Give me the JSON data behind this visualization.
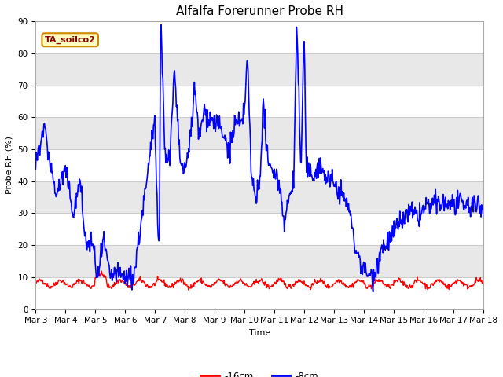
{
  "title": "Alfalfa Forerunner Probe RH",
  "xlabel": "Time",
  "ylabel": "Probe RH (%)",
  "ylim": [
    0,
    90
  ],
  "yticks": [
    0,
    10,
    20,
    30,
    40,
    50,
    60,
    70,
    80,
    90
  ],
  "annotation": "TA_soilco2",
  "legend_labels": [
    "-16cm",
    "-8cm"
  ],
  "legend_colors": [
    "#ff0000",
    "#0000ff"
  ],
  "bg_color": "#ffffff",
  "plot_bg_color": "#f0f0f0",
  "grid_color": "#ffffff",
  "title_fontsize": 11,
  "label_fontsize": 8,
  "tick_fontsize": 7.5
}
